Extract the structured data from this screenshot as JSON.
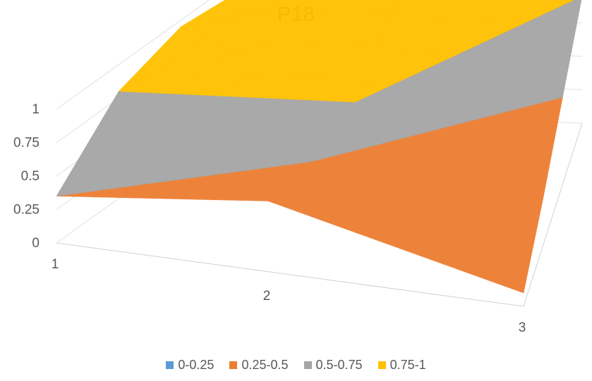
{
  "chart_data": {
    "type": "surface",
    "title": "P18",
    "x_categories": [
      "1",
      "2",
      "3"
    ],
    "series_depth": 4,
    "zlim": [
      0,
      1
    ],
    "z_ticks": [
      "0",
      "0.25",
      "0.5",
      "0.75",
      "1"
    ],
    "grid": true,
    "legend_position": "bottom",
    "legend": [
      {
        "label": "0-0.25",
        "color": "#5b9bd5"
      },
      {
        "label": "0.25-0.5",
        "color": "#ed7d31"
      },
      {
        "label": "0.5-0.75",
        "color": "#a5a5a5"
      },
      {
        "label": "0.75-1",
        "color": "#ffc000"
      }
    ],
    "values": [
      [
        0.35,
        0.8,
        0.95,
        0.9
      ],
      [
        0.55,
        0.45,
        0.5,
        0.9
      ],
      [
        0.1,
        0.35,
        0.65,
        0.95
      ]
    ]
  }
}
